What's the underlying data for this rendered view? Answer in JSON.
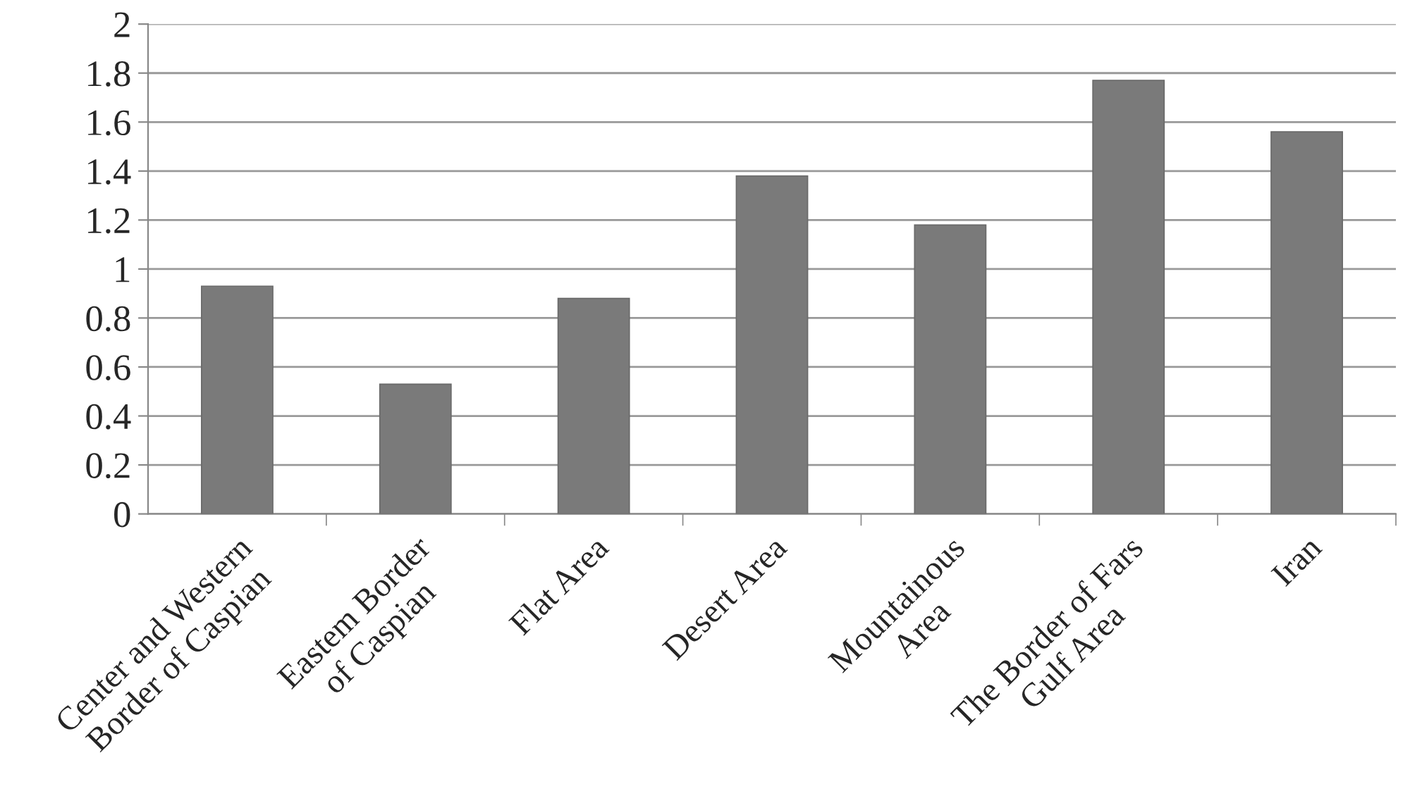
{
  "chart_data": {
    "type": "bar",
    "categories": [
      "Center and Western\nBorder of Caspian",
      "Eastem Border\nof Caspian",
      "Flat Area",
      "Desert Area",
      "Mountainous\nArea",
      "The Border of Fars\nGulf Area",
      "Iran"
    ],
    "values": [
      0.93,
      0.53,
      0.88,
      1.38,
      1.18,
      1.77,
      1.56
    ],
    "color": "#7a7a7a",
    "ylim": [
      0,
      2
    ],
    "yticks": [
      0,
      0.2,
      0.4,
      0.6,
      0.8,
      1,
      1.2,
      1.4,
      1.6,
      1.8,
      2
    ],
    "grid": "y",
    "legend": false
  }
}
